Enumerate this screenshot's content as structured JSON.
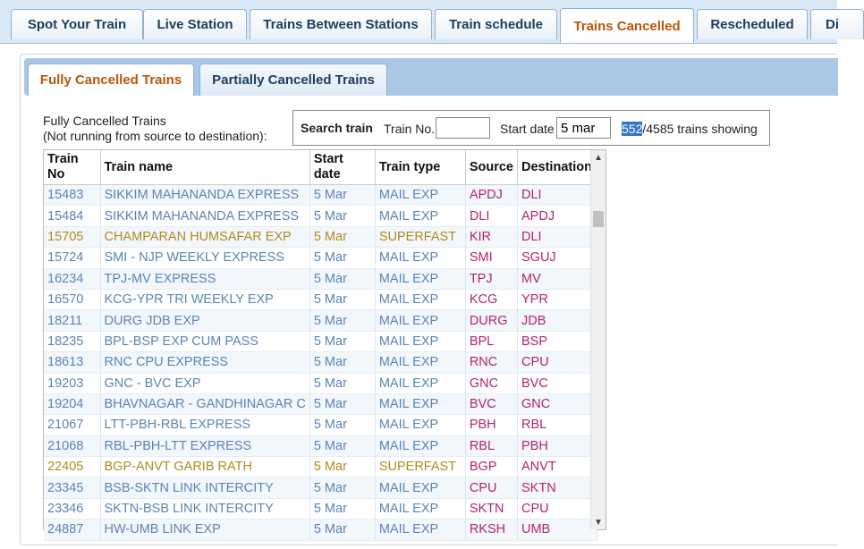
{
  "top_tabs": [
    {
      "label": "Spot Your Train"
    },
    {
      "label": "Live Station"
    },
    {
      "label": "Trains Between Stations"
    },
    {
      "label": "Train schedule"
    },
    {
      "label": "Trains Cancelled"
    },
    {
      "label": "Rescheduled"
    },
    {
      "label": "Di"
    }
  ],
  "sub_tabs": [
    {
      "label": "Fully Cancelled Trains"
    },
    {
      "label": "Partially Cancelled Trains"
    }
  ],
  "caption": {
    "line1": "Fully Cancelled Trains",
    "line2": "(Not running from source to destination):"
  },
  "search": {
    "title": "Search train",
    "train_no_label": "Train No.",
    "train_no_value": "",
    "start_date_label": "Start date",
    "start_date_value": "5 mar",
    "count_shown": "552",
    "count_total": "/4585 trains showing"
  },
  "table": {
    "headers": {
      "train_no": "Train No",
      "train_name": "Train name",
      "start_date": "Start date",
      "train_type": "Train type",
      "source": "Source",
      "destination": "Destination"
    },
    "rows": [
      {
        "no": "15483",
        "name": "SIKKIM MAHANANDA EXPRESS",
        "date": "5 Mar",
        "type": "MAIL EXP",
        "src": "APDJ",
        "dst": "DLI"
      },
      {
        "no": "15484",
        "name": "SIKKIM MAHANANDA EXPRESS",
        "date": "5 Mar",
        "type": "MAIL EXP",
        "src": "DLI",
        "dst": "APDJ"
      },
      {
        "no": "15705",
        "name": "CHAMPARAN HUMSAFAR EXP",
        "date": "5 Mar",
        "type": "SUPERFAST",
        "src": "KIR",
        "dst": "DLI"
      },
      {
        "no": "15724",
        "name": "SMI - NJP WEEKLY EXPRESS",
        "date": "5 Mar",
        "type": "MAIL EXP",
        "src": "SMI",
        "dst": "SGUJ"
      },
      {
        "no": "16234",
        "name": "TPJ-MV EXPRESS",
        "date": "5 Mar",
        "type": "MAIL EXP",
        "src": "TPJ",
        "dst": "MV"
      },
      {
        "no": "16570",
        "name": "KCG-YPR TRI WEEKLY EXP",
        "date": "5 Mar",
        "type": "MAIL EXP",
        "src": "KCG",
        "dst": "YPR"
      },
      {
        "no": "18211",
        "name": "DURG JDB EXP",
        "date": "5 Mar",
        "type": "MAIL EXP",
        "src": "DURG",
        "dst": "JDB"
      },
      {
        "no": "18235",
        "name": "BPL-BSP EXP CUM PASS",
        "date": "5 Mar",
        "type": "MAIL EXP",
        "src": "BPL",
        "dst": "BSP"
      },
      {
        "no": "18613",
        "name": "RNC CPU EXPRESS",
        "date": "5 Mar",
        "type": "MAIL EXP",
        "src": "RNC",
        "dst": "CPU"
      },
      {
        "no": "19203",
        "name": "GNC - BVC EXP",
        "date": "5 Mar",
        "type": "MAIL EXP",
        "src": "GNC",
        "dst": "BVC"
      },
      {
        "no": "19204",
        "name": "BHAVNAGAR - GANDHINAGAR C",
        "date": "5 Mar",
        "type": "MAIL EXP",
        "src": "BVC",
        "dst": "GNC"
      },
      {
        "no": "21067",
        "name": "LTT-PBH-RBL EXPRESS",
        "date": "5 Mar",
        "type": "MAIL EXP",
        "src": "PBH",
        "dst": "RBL"
      },
      {
        "no": "21068",
        "name": "RBL-PBH-LTT EXPRESS",
        "date": "5 Mar",
        "type": "MAIL EXP",
        "src": "RBL",
        "dst": "PBH"
      },
      {
        "no": "22405",
        "name": "BGP-ANVT GARIB RATH",
        "date": "5 Mar",
        "type": "SUPERFAST",
        "src": "BGP",
        "dst": "ANVT"
      },
      {
        "no": "23345",
        "name": "BSB-SKTN LINK INTERCITY",
        "date": "5 Mar",
        "type": "MAIL EXP",
        "src": "CPU",
        "dst": "SKTN"
      },
      {
        "no": "23346",
        "name": "SKTN-BSB LINK INTERCITY",
        "date": "5 Mar",
        "type": "MAIL EXP",
        "src": "SKTN",
        "dst": "CPU"
      },
      {
        "no": "24887",
        "name": "HW-UMB LINK EXP",
        "date": "5 Mar",
        "type": "MAIL EXP",
        "src": "RKSH",
        "dst": "UMB"
      }
    ]
  },
  "colors": {
    "mail_exp_text": "#5a84b3",
    "superfast_text": "#b08a1e",
    "station_text": "#b2236f",
    "active_tab_text": "#b8560a"
  }
}
